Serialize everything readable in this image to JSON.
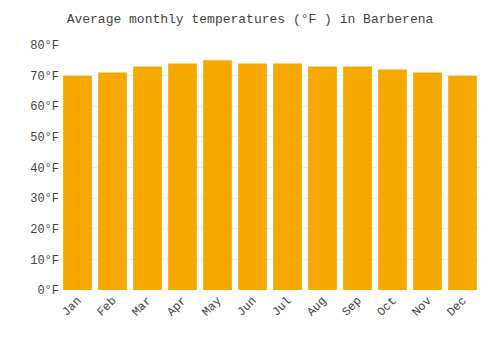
{
  "chart_data": {
    "type": "bar",
    "title": "Average monthly temperatures (°F ) in Barberena",
    "categories": [
      "Jan",
      "Feb",
      "Mar",
      "Apr",
      "May",
      "Jun",
      "Jul",
      "Aug",
      "Sep",
      "Oct",
      "Nov",
      "Dec"
    ],
    "values": [
      70,
      71,
      73,
      74,
      75,
      74,
      74,
      73,
      73,
      72,
      71,
      70
    ],
    "color": "#F5A800",
    "ylim": [
      0,
      80
    ],
    "yticks": [
      {
        "value": 0,
        "label": "0°F"
      },
      {
        "value": 10,
        "label": "10°F"
      },
      {
        "value": 20,
        "label": "20°F"
      },
      {
        "value": 30,
        "label": "30°F"
      },
      {
        "value": 40,
        "label": "40°F"
      },
      {
        "value": 50,
        "label": "50°F"
      },
      {
        "value": 60,
        "label": "60°F"
      },
      {
        "value": 70,
        "label": "70°F"
      },
      {
        "value": 80,
        "label": "80°F"
      }
    ],
    "grid": true
  }
}
